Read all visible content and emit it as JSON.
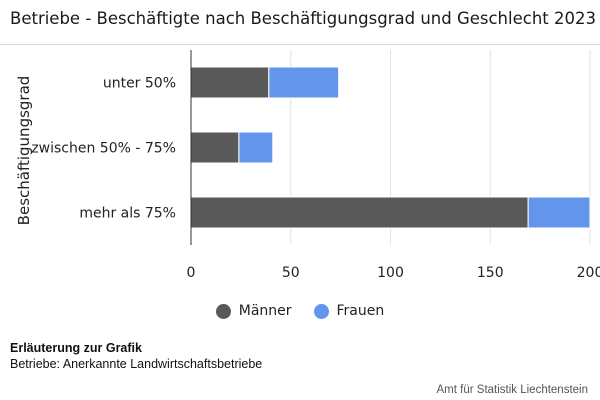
{
  "title": "Betriebe - Beschäftigte nach Beschäftigungsgrad und Geschlecht 2023",
  "chart_data": {
    "type": "bar",
    "orientation": "horizontal",
    "stacked": true,
    "categories": [
      "unter 50%",
      "zwischen 50% - 75%",
      "mehr als 75%"
    ],
    "series": [
      {
        "name": "Männer",
        "color": "#595959",
        "values": [
          39,
          24,
          169
        ]
      },
      {
        "name": "Frauen",
        "color": "#6495ed",
        "values": [
          35,
          17,
          31
        ]
      }
    ],
    "ylabel": "Beschäftigungsgrad",
    "xlabel": "",
    "xlim": [
      0,
      200
    ],
    "xticks": [
      "0",
      "50",
      "100",
      "150",
      "200"
    ],
    "grid": true,
    "legend_position": "bottom"
  },
  "legend": [
    {
      "label": "Männer",
      "color": "#595959"
    },
    {
      "label": "Frauen",
      "color": "#6495ed"
    }
  ],
  "note": {
    "title": "Erläuterung zur Grafik",
    "text": "Betriebe: Anerkannte Landwirtschaftsbetriebe"
  },
  "source": "Amt für Statistik Liechtenstein"
}
